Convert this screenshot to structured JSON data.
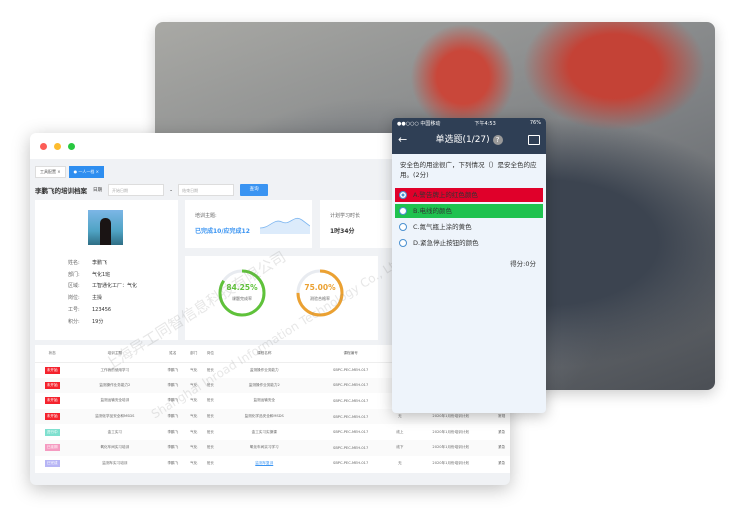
{
  "watermark": {
    "cn": "上海异工同智信息科技有限公司",
    "en": "Shanghai Inroad Information Technology Co., Ltd."
  },
  "desktop": {
    "tabs": [
      {
        "label": "工具配置"
      },
      {
        "label": "一人一档"
      }
    ],
    "page_title": "李鹏飞的培训档案",
    "date_label": "日期",
    "start_placeholder": "开始日期",
    "end_placeholder": "结束日期",
    "date_separator": "-",
    "query_button": "查询",
    "profile": {
      "fields": [
        {
          "k": "姓名:",
          "v": "李鹏飞"
        },
        {
          "k": "部门:",
          "v": "气化1班"
        },
        {
          "k": "区域:",
          "v": "工智通化工厂：气化"
        },
        {
          "k": "岗位:",
          "v": "主操"
        },
        {
          "k": "工号:",
          "v": "123456"
        },
        {
          "k": "积分:",
          "v": "19分"
        }
      ]
    },
    "topic": {
      "label": "培训主题:",
      "value": "已完成10/应完成12"
    },
    "hours": {
      "label": "计划学习时长",
      "value": "1时34分"
    },
    "rings": [
      {
        "value": "84.25%",
        "label": "课题完成率",
        "fraction": 0.8425,
        "color": "#5fc23a"
      },
      {
        "value": "75.00%",
        "label": "测验合格率",
        "fraction": 0.75,
        "color": "#eba132"
      }
    ],
    "table": {
      "headers": [
        "状态",
        "培训主题",
        "姓名",
        "部门",
        "岗位",
        "课程名称",
        "课程编号",
        "形式",
        "培训计划",
        "备注"
      ],
      "rows": [
        {
          "status": "未开始",
          "status_color": "#f5222d",
          "cells": [
            "工作我的使用学习",
            "李鹏飞",
            "气化",
            "班长",
            "监测操作业务能力",
            "SBPC-PEC-MEH-017",
            "",
            "",
            ""
          ]
        },
        {
          "status": "未开始",
          "status_color": "#f5222d",
          "cells": [
            "监测操作业务能力2",
            "李鹏飞",
            "气化",
            "班长",
            "监测操作业务能力2",
            "SBPC-PEC-MEH-017",
            "",
            "",
            ""
          ]
        },
        {
          "status": "未开始",
          "status_color": "#f5222d",
          "cells": [
            "监测运输安全培训",
            "李鹏飞",
            "气化",
            "班长",
            "监测运输安全",
            "SBPC-PEC-MEH-017",
            "",
            "",
            ""
          ]
        },
        {
          "status": "未开始",
          "status_color": "#f5222d",
          "cells": [
            "监测化学品安全和MSDS",
            "李鹏飞",
            "气化",
            "班长",
            "监测化学品安全和MSDS",
            "SBPC-PEC-MEH-017",
            "无",
            "2020年1月份培训计划",
            "常规"
          ]
        },
        {
          "status": "进行中",
          "status_color": "#7fe0cf",
          "cells": [
            "金工实习",
            "李鹏飞",
            "气化",
            "班长",
            "金工实习实操课",
            "SBPC-PEC-MEH-017",
            "线上",
            "2020年1月份培训计划",
            "紧急"
          ]
        },
        {
          "status": "已延期",
          "status_color": "#f59bc1",
          "cells": [
            "氧化车间实习培训",
            "李鹏飞",
            "气化",
            "班长",
            "氧化车间实习学习",
            "SBPC-PEC-MEH-017",
            "线下",
            "2020年1月份培训计划",
            "紧急"
          ]
        },
        {
          "status": "已完成",
          "status_color": "#b7b5f5",
          "cells": [
            "监测车实习培训",
            "李鹏飞",
            "气化",
            "班长",
            "监测车复训",
            "SBPC-PEC-MEH-017",
            "无",
            "2020年1月份培训计划",
            "紧急"
          ]
        }
      ]
    }
  },
  "phone": {
    "status": {
      "carrier": "●●○○○ 中国移动",
      "time": "下午4:53",
      "battery": "76%"
    },
    "title": "单选题(1/27)",
    "question": "安全色的用途很广，下列情况（）是安全色的应用。(2分)",
    "options": [
      {
        "label": "A.警告牌上的红色颜色",
        "state": "wrong",
        "color": "#e0002a"
      },
      {
        "label": "B.电线的颜色",
        "state": "correct",
        "color": "#1fc24f"
      },
      {
        "label": "C.氮气瓶上涂的黄色",
        "state": "none"
      },
      {
        "label": "D.紧急停止按钮的颜色",
        "state": "none"
      }
    ],
    "score": "得分:0分"
  }
}
